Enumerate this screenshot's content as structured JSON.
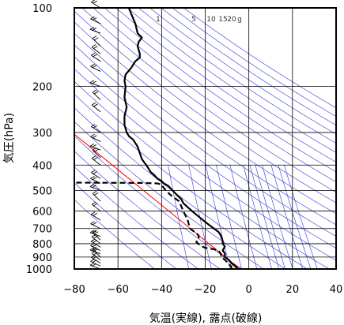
{
  "chart_data": {
    "type": "line",
    "subtype": "skew-T log-P",
    "title": "",
    "xlabel": "気温(実線), 露点(破線)",
    "ylabel": "気圧(hPa)",
    "xlim": [
      -80,
      40
    ],
    "ylim": [
      1000,
      100
    ],
    "y_scale": "log",
    "x_ticks": [
      -80,
      -60,
      -40,
      -20,
      0,
      20,
      40
    ],
    "x_tick_labels": [
      "−80",
      "−60",
      "−40",
      "−20",
      "0",
      "20",
      "40"
    ],
    "y_ticks": [
      100,
      200,
      300,
      400,
      500,
      600,
      700,
      800,
      900,
      1000
    ],
    "y_tick_labels": [
      "100",
      "200",
      "300",
      "400",
      "500",
      "600",
      "700",
      "800",
      "900",
      "1000"
    ],
    "grid": true,
    "mixing_ratio_labels": [
      "1",
      "5",
      "10",
      "15",
      "20",
      "g"
    ],
    "colors": {
      "temperature": "#000000",
      "dewpoint": "#000000",
      "reference": "#ff0000",
      "adiabat": "#3333dd",
      "grid": "#000000"
    },
    "series": [
      {
        "style": "solid",
        "points": [
          [
            1000,
            -5
          ],
          [
            980,
            -6
          ],
          [
            950,
            -8
          ],
          [
            925,
            -9
          ],
          [
            900,
            -11
          ],
          [
            870,
            -11
          ],
          [
            850,
            -12
          ],
          [
            820,
            -11
          ],
          [
            800,
            -12
          ],
          [
            780,
            -12
          ],
          [
            760,
            -12.5
          ],
          [
            740,
            -13
          ],
          [
            720,
            -14
          ],
          [
            700,
            -16
          ],
          [
            680,
            -18
          ],
          [
            660,
            -20
          ],
          [
            640,
            -22
          ],
          [
            620,
            -24
          ],
          [
            600,
            -26
          ],
          [
            580,
            -28
          ],
          [
            560,
            -30
          ],
          [
            540,
            -31
          ],
          [
            520,
            -33
          ],
          [
            500,
            -35
          ],
          [
            490,
            -36
          ],
          [
            480,
            -37
          ],
          [
            470,
            -39
          ],
          [
            460,
            -40
          ],
          [
            450,
            -42
          ],
          [
            440,
            -43
          ],
          [
            425,
            -45
          ],
          [
            400,
            -47
          ],
          [
            380,
            -49
          ],
          [
            360,
            -50
          ],
          [
            340,
            -51
          ],
          [
            320,
            -53
          ],
          [
            310,
            -55
          ],
          [
            300,
            -56
          ],
          [
            280,
            -57
          ],
          [
            260,
            -57
          ],
          [
            240,
            -56
          ],
          [
            220,
            -57
          ],
          [
            200,
            -56.5
          ],
          [
            190,
            -57
          ],
          [
            180,
            -56.5
          ],
          [
            170,
            -54
          ],
          [
            160,
            -52
          ],
          [
            155,
            -50
          ],
          [
            150,
            -50
          ],
          [
            140,
            -51
          ],
          [
            135,
            -50.5
          ],
          [
            130,
            -49
          ],
          [
            125,
            -51
          ],
          [
            120,
            -51.5
          ],
          [
            115,
            -52
          ],
          [
            110,
            -53
          ],
          [
            105,
            -54
          ],
          [
            100,
            -55
          ]
        ]
      },
      {
        "style": "dashed",
        "points": [
          [
            1000,
            -8
          ],
          [
            980,
            -8
          ],
          [
            960,
            -9
          ],
          [
            945,
            -10
          ],
          [
            930,
            -10.5
          ],
          [
            900,
            -12.5
          ],
          [
            870,
            -13
          ],
          [
            850,
            -14
          ],
          [
            840,
            -16
          ],
          [
            830,
            -20
          ],
          [
            815,
            -22
          ],
          [
            790,
            -24
          ],
          [
            775,
            -24
          ],
          [
            760,
            -23
          ],
          [
            745,
            -23
          ],
          [
            730,
            -24
          ],
          [
            700,
            -27
          ],
          [
            650,
            -28
          ],
          [
            600,
            -30
          ],
          [
            550,
            -32
          ],
          [
            520,
            -36
          ],
          [
            490,
            -39
          ],
          [
            475,
            -40
          ],
          [
            470,
            -42
          ],
          [
            468,
            -49
          ],
          [
            467,
            -80
          ]
        ]
      }
    ],
    "reference_lines": [
      {
        "color": "red",
        "points": [
          [
            1000,
            -4
          ],
          [
            300,
            -81
          ]
        ]
      }
    ],
    "wind_barbs": {
      "column_x": -68,
      "pressures": [
        1000,
        975,
        950,
        925,
        900,
        875,
        850,
        825,
        800,
        775,
        750,
        700,
        650,
        600,
        550,
        500,
        470,
        450,
        400,
        375,
        350,
        325,
        300,
        250,
        225,
        200,
        175,
        160,
        150,
        140,
        125,
        115,
        100
      ]
    }
  }
}
